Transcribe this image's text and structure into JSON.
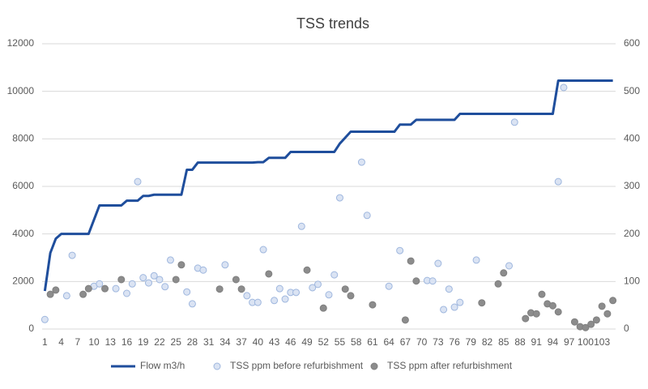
{
  "chart_data": {
    "type": "combo",
    "title": "TSS trends",
    "x": [
      1,
      2,
      3,
      4,
      5,
      6,
      7,
      8,
      9,
      10,
      11,
      12,
      13,
      14,
      15,
      16,
      17,
      18,
      19,
      20,
      21,
      22,
      23,
      24,
      25,
      26,
      27,
      28,
      29,
      30,
      31,
      32,
      33,
      34,
      35,
      36,
      37,
      38,
      39,
      40,
      41,
      42,
      43,
      44,
      45,
      46,
      47,
      48,
      49,
      50,
      51,
      52,
      53,
      54,
      55,
      56,
      57,
      58,
      59,
      60,
      61,
      62,
      63,
      64,
      65,
      66,
      67,
      68,
      69,
      70,
      71,
      72,
      73,
      74,
      75,
      76,
      77,
      78,
      79,
      80,
      81,
      82,
      83,
      84,
      85,
      86,
      87,
      88,
      89,
      90,
      91,
      92,
      93,
      94,
      95,
      96,
      97,
      98,
      99,
      100,
      101,
      102,
      103,
      104,
      105
    ],
    "xlim": [
      0.5,
      105.5
    ],
    "xticks": [
      1,
      4,
      7,
      10,
      13,
      16,
      19,
      22,
      25,
      28,
      31,
      34,
      37,
      40,
      43,
      46,
      49,
      52,
      55,
      58,
      61,
      64,
      67,
      70,
      73,
      76,
      79,
      82,
      85,
      88,
      91,
      94,
      97,
      100,
      103
    ],
    "ylim": [
      0,
      12000
    ],
    "yticks": [
      0,
      2000,
      4000,
      6000,
      8000,
      10000,
      12000
    ],
    "y2lim": [
      0,
      600
    ],
    "y2ticks": [
      0,
      100,
      200,
      300,
      400,
      500,
      600
    ],
    "grid": true,
    "legend": "bottom",
    "series": [
      {
        "name": "Flow m3/h",
        "type": "line",
        "axis": "y",
        "color": "#1f4e9c",
        "values": [
          1600,
          3200,
          3800,
          4000,
          4000,
          4000,
          4000,
          4000,
          4000,
          4600,
          5200,
          5200,
          5200,
          5200,
          5200,
          5400,
          5400,
          5400,
          5600,
          5600,
          5650,
          5650,
          5650,
          5650,
          5650,
          5650,
          6700,
          6700,
          7000,
          7000,
          7000,
          7000,
          7000,
          7000,
          7000,
          7000,
          7000,
          7000,
          7000,
          7020,
          7020,
          7200,
          7200,
          7200,
          7200,
          7450,
          7450,
          7450,
          7450,
          7450,
          7450,
          7450,
          7450,
          7450,
          7800,
          8050,
          8300,
          8300,
          8300,
          8300,
          8300,
          8300,
          8300,
          8300,
          8300,
          8600,
          8600,
          8600,
          8800,
          8800,
          8800,
          8800,
          8800,
          8800,
          8800,
          8800,
          9050,
          9050,
          9050,
          9050,
          9050,
          9050,
          9050,
          9050,
          9050,
          9050,
          9050,
          9050,
          9050,
          9050,
          9050,
          9050,
          9050,
          9050,
          10450,
          10450,
          10450,
          10450,
          10450,
          10450,
          10450,
          10450,
          10450,
          10450,
          10450
        ]
      },
      {
        "name": "TSS ppm before refurbishment",
        "type": "scatter",
        "axis": "y2",
        "color": "#dae3f3",
        "values": [
          20,
          null,
          null,
          null,
          70,
          155,
          null,
          null,
          null,
          90,
          95,
          null,
          null,
          85,
          null,
          75,
          95,
          310,
          108,
          97,
          112,
          104,
          89,
          145,
          null,
          null,
          78,
          53,
          128,
          124,
          null,
          null,
          null,
          135,
          null,
          null,
          null,
          70,
          56,
          56,
          167,
          null,
          60,
          85,
          63,
          77,
          77,
          216,
          null,
          87,
          94,
          null,
          72,
          114,
          276,
          null,
          null,
          null,
          351,
          239,
          null,
          null,
          null,
          90,
          null,
          165,
          null,
          null,
          null,
          null,
          102,
          101,
          138,
          41,
          84,
          46,
          56,
          null,
          null,
          145,
          null,
          null,
          null,
          null,
          null,
          133,
          435,
          null,
          null,
          null,
          null,
          null,
          null,
          null,
          310,
          508,
          null,
          null,
          null,
          null,
          null,
          null,
          null,
          null,
          null
        ]
      },
      {
        "name": "TSS ppm after refurbishment",
        "type": "scatter",
        "axis": "y2",
        "color": "#8c8c8c",
        "values": [
          null,
          73,
          82,
          null,
          null,
          null,
          null,
          73,
          85,
          null,
          null,
          85,
          null,
          null,
          104,
          null,
          null,
          null,
          null,
          null,
          null,
          null,
          null,
          null,
          104,
          135,
          null,
          null,
          null,
          null,
          null,
          null,
          84,
          null,
          null,
          104,
          84,
          null,
          null,
          null,
          null,
          116,
          null,
          null,
          null,
          null,
          null,
          null,
          124,
          null,
          null,
          44,
          null,
          null,
          null,
          84,
          70,
          null,
          null,
          null,
          51,
          null,
          null,
          null,
          null,
          null,
          19,
          143,
          101,
          null,
          null,
          null,
          null,
          null,
          null,
          null,
          null,
          null,
          null,
          null,
          55,
          null,
          null,
          95,
          118,
          null,
          null,
          null,
          22,
          34,
          32,
          73,
          53,
          49,
          36,
          null,
          null,
          15,
          5,
          3,
          10,
          19,
          48,
          32,
          60
        ]
      }
    ]
  }
}
